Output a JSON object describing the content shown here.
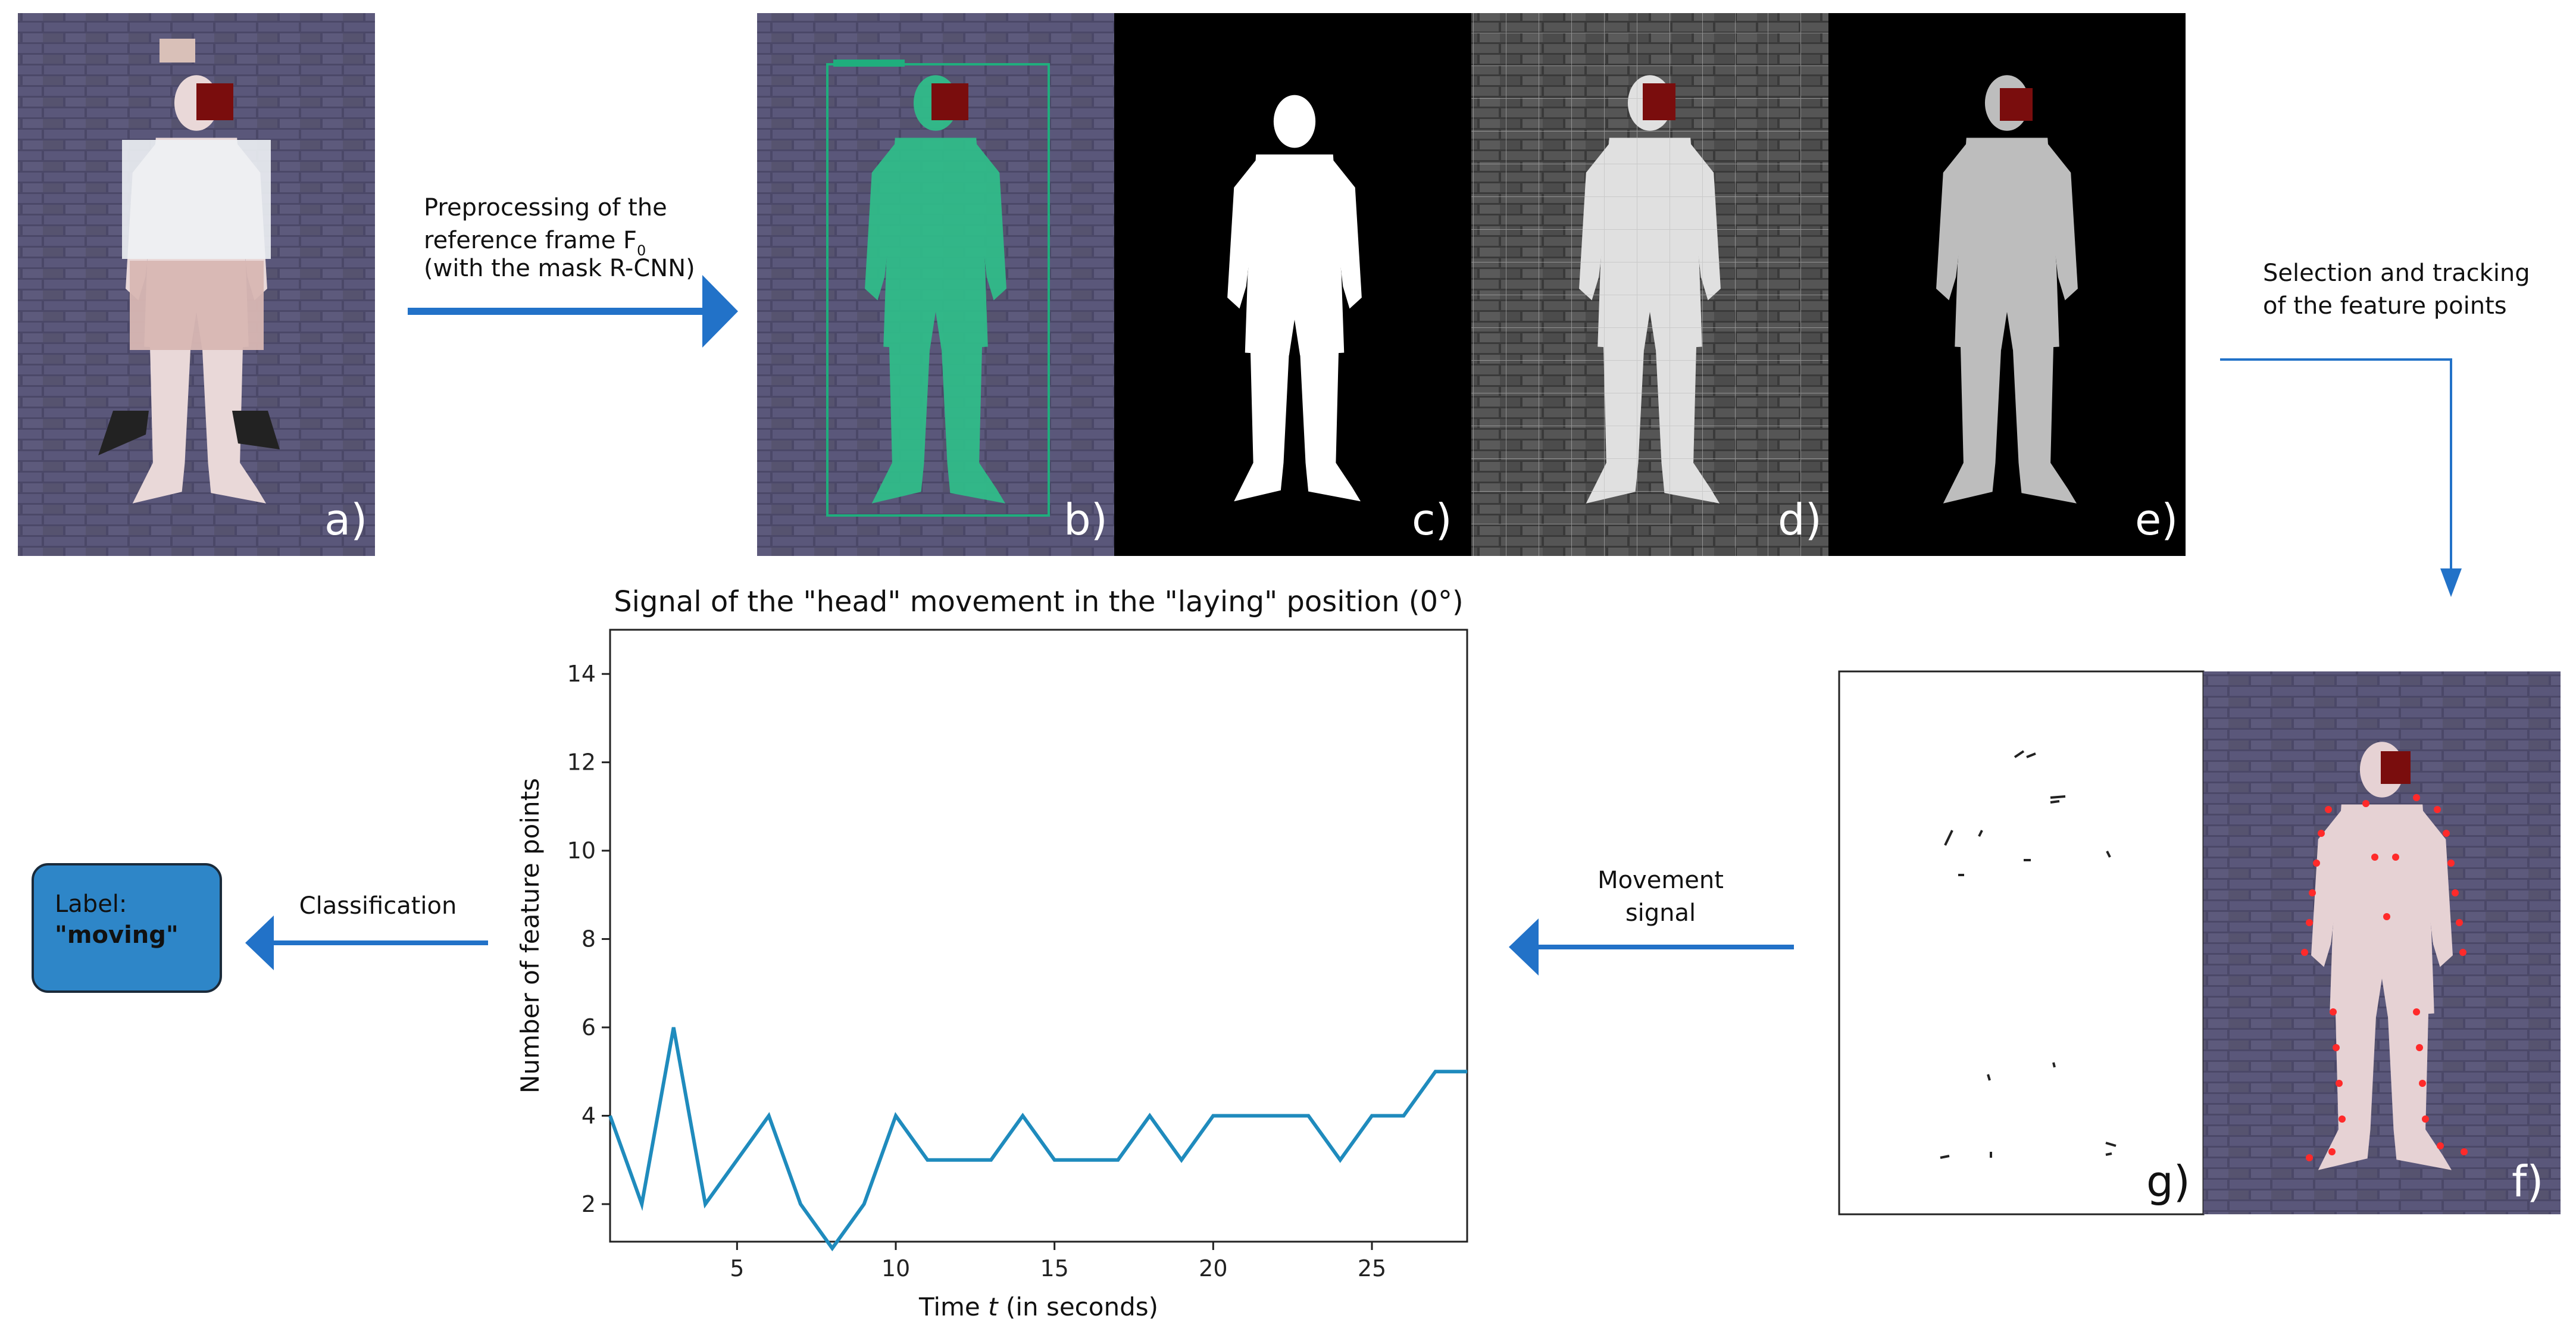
{
  "colors": {
    "arrow": "#2272c8",
    "signal_line": "#1f8bbd",
    "label_box_fill": "#2e86c8",
    "label_box_stroke": "#1a2a3a",
    "brick": "#4a4866",
    "mask_green": "#2fbf8a",
    "feature_point": "#ff2a2a",
    "face_block": "#7a0d0d"
  },
  "panels": {
    "a": "a)",
    "b": "b)",
    "c": "c)",
    "d": "d)",
    "e": "e)",
    "f": "f)",
    "g": "g)"
  },
  "annotations": {
    "preprocess_line1": "Preprocessing of the",
    "preprocess_line2_prefix": "reference frame F",
    "preprocess_line2_sub": "0",
    "preprocess_line3": "(with the mask R-CNN)",
    "selection_line1": "Selection and tracking",
    "selection_line2": "of the feature points",
    "movement_line1": "Movement",
    "movement_line2": "signal",
    "classification": "Classification",
    "label_title": "Label:",
    "label_value": "\"moving\""
  },
  "chart_data": {
    "type": "line",
    "title": "Signal of the \"head\" movement in the \"laying\" position (0°)",
    "xlabel_prefix": "Time ",
    "xlabel_var": "t",
    "xlabel_suffix": " (in seconds)",
    "ylabel": "Number of feature points",
    "xlim": [
      1,
      28
    ],
    "ylim": [
      1.15,
      15
    ],
    "xticks": [
      5,
      10,
      15,
      20,
      25
    ],
    "yticks": [
      2,
      4,
      6,
      8,
      10,
      12,
      14
    ],
    "x": [
      1,
      2,
      3,
      4,
      5,
      6,
      7,
      8,
      9,
      10,
      11,
      12,
      13,
      14,
      15,
      16,
      17,
      18,
      19,
      20,
      21,
      22,
      23,
      24,
      25,
      26,
      27,
      28
    ],
    "values": [
      4,
      2,
      6,
      2,
      3,
      4,
      2,
      1,
      2,
      4,
      3,
      3,
      3,
      4,
      3,
      3,
      3,
      4,
      3,
      4,
      4,
      4,
      4,
      3,
      4,
      4,
      5,
      5
    ],
    "grid": false
  }
}
